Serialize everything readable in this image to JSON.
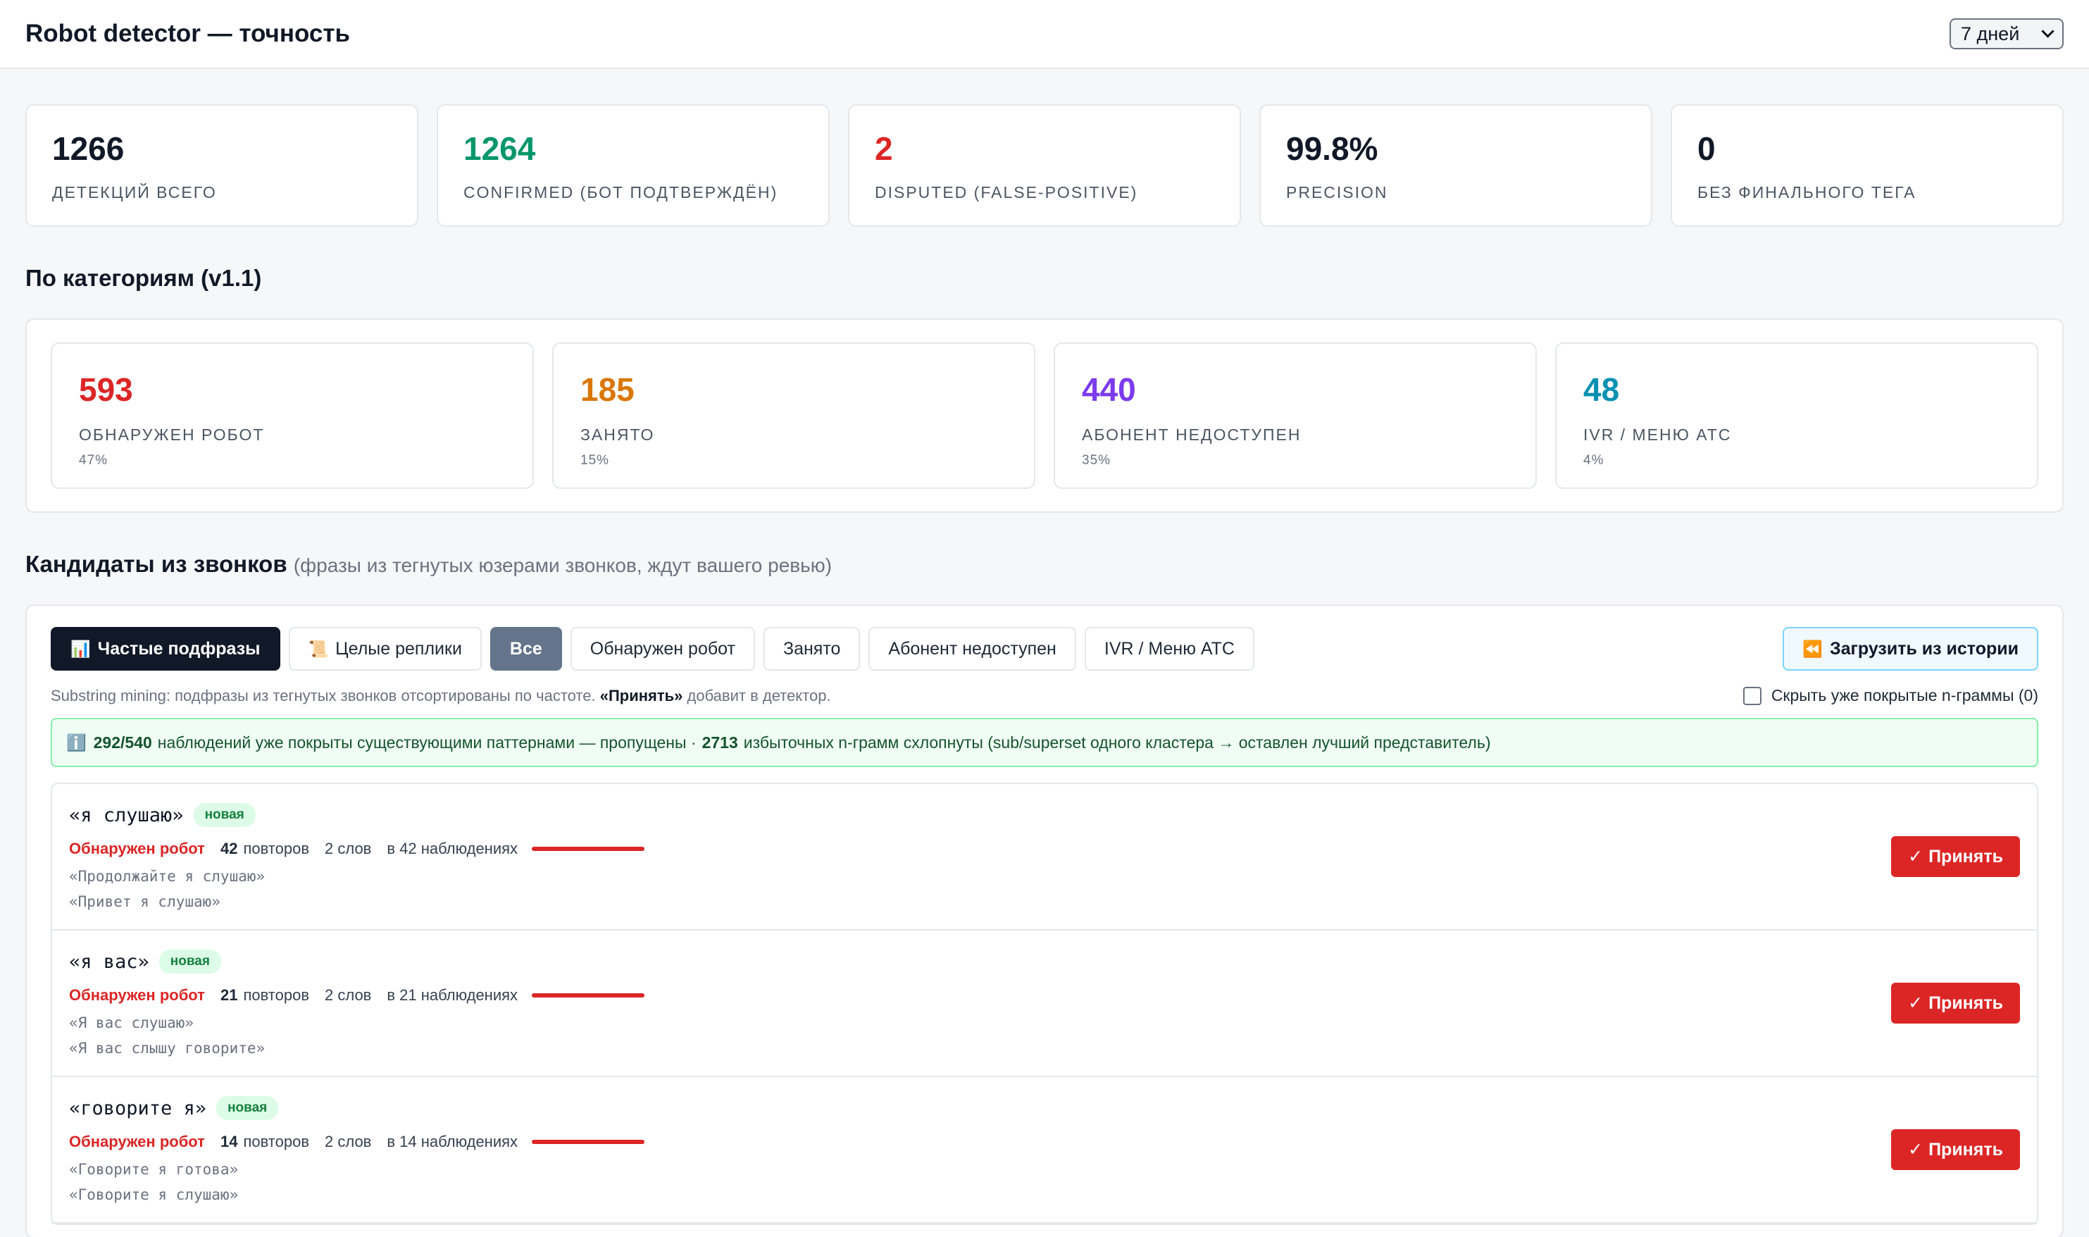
{
  "header": {
    "title": "Robot detector — точность",
    "period": "7 дней"
  },
  "colors": {
    "confirmed": "#059669",
    "disputed": "#dc2626",
    "robot": "#dc2626",
    "busy": "#d97706",
    "unavailable": "#7c3aed",
    "ivr": "#0891b2",
    "accept": "#dc2626"
  },
  "stats": [
    {
      "value": "1266",
      "label": "Детекций всего"
    },
    {
      "value": "1264",
      "label": "Confirmed (бот подтверждён)"
    },
    {
      "value": "2",
      "label": "Disputed (false-positive)"
    },
    {
      "value": "99.8%",
      "label": "Precision"
    },
    {
      "value": "0",
      "label": "Без финального тега"
    }
  ],
  "categories_title": "По категориям (v1.1)",
  "categories": [
    {
      "value": "593",
      "label": "Обнаружен робот",
      "pct": "47%"
    },
    {
      "value": "185",
      "label": "Занято",
      "pct": "15%"
    },
    {
      "value": "440",
      "label": "Абонент недоступен",
      "pct": "35%"
    },
    {
      "value": "48",
      "label": "IVR / Меню АТС",
      "pct": "4%"
    }
  ],
  "candidates": {
    "title": "Кандидаты из звонков",
    "subtitle": "(фразы из тегнутых юзерами звонков, ждут вашего ревью)",
    "tabs": {
      "frequent": {
        "icon": "bar-chart-icon",
        "glyph": "📊",
        "label": "Частые подфразы"
      },
      "whole": {
        "icon": "scroll-icon",
        "glyph": "📜",
        "label": "Целые реплики"
      },
      "all": "Все",
      "robot": "Обнаружен робот",
      "busy": "Занято",
      "unavailable": "Абонент недоступен",
      "ivr": "IVR / Меню АТС"
    },
    "history_button": {
      "icon": "rewind-icon",
      "glyph": "⏪",
      "label": "Загрузить из истории"
    },
    "hint_prefix": "Substring mining: подфразы из тегнутых звонков отсортированы по частоте.",
    "hint_accept": "«Принять»",
    "hint_suffix": "добавит в детектор.",
    "hide_covered": "Скрыть уже покрытые n-граммы (0)",
    "info": {
      "icon": "info-icon",
      "glyph": "ℹ️",
      "covered": "292/540",
      "covered_text": "наблюдений уже покрыты существующими паттернами — пропущены ·",
      "collapsed": "2713",
      "collapsed_text": "избыточных n-грамм схлопнуты (sub/superset одного кластера → оставлен лучший представитель)"
    },
    "new_badge": "новая",
    "accept_label": "Принять",
    "items": [
      {
        "phrase": "«я слушаю»",
        "category": "Обнаружен робот",
        "repeats": "42",
        "repeats_label": "повторов",
        "words": "2 слов",
        "observations": "в 42 наблюдениях",
        "share": 1.0,
        "examples": [
          "«Продолжайте я слушаю»",
          "«Привет я слушаю»"
        ]
      },
      {
        "phrase": "«я вас»",
        "category": "Обнаружен робот",
        "repeats": "21",
        "repeats_label": "повторов",
        "words": "2 слов",
        "observations": "в 21 наблюдениях",
        "share": 1.0,
        "examples": [
          "«Я вас слушаю»",
          "«Я вас слышу говорите»"
        ]
      },
      {
        "phrase": "«говорите я»",
        "category": "Обнаружен робот",
        "repeats": "14",
        "repeats_label": "повторов",
        "words": "2 слов",
        "observations": "в 14 наблюдениях",
        "share": 1.0,
        "examples": [
          "«Говорите я готова»",
          "«Говорите я слушаю»"
        ]
      }
    ]
  }
}
